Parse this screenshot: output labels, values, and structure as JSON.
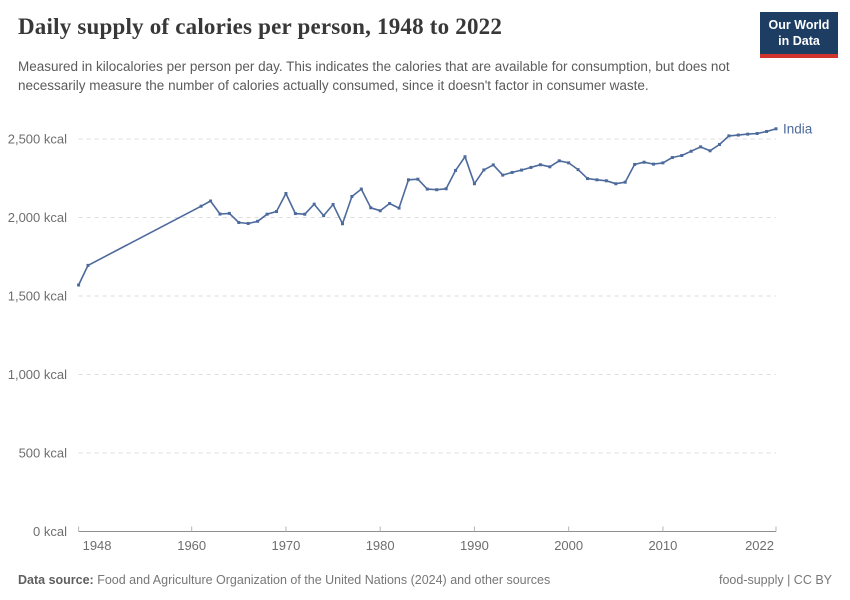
{
  "header": {
    "title": "Daily supply of calories per person, 1948 to 2022",
    "subtitle": "Measured in kilocalories per person per day. This indicates the calories that are available for consumption, but does not necessarily measure the number of calories actually consumed, since it doesn't factor in consumer waste.",
    "logo": {
      "line1": "Our World",
      "line2": "in Data",
      "bg_color": "#1d3d63",
      "accent_color": "#d0342c"
    }
  },
  "footer": {
    "datasource_label": "Data source:",
    "datasource_text": " Food and Agriculture Organization of the United Nations (2024) and other sources",
    "note_right": "food-supply | CC BY"
  },
  "chart_data": {
    "type": "line",
    "title": "Daily supply of calories per person, 1948 to 2022",
    "entity": "India",
    "line_color": "#4C6A9C",
    "grid": true,
    "legend_position": "end-of-line",
    "ylabel": "",
    "xlabel": "",
    "ytick_suffix": " kcal",
    "ylim": [
      0,
      2500
    ],
    "xlim": [
      1948,
      2022
    ],
    "yticks": [
      0,
      500,
      1000,
      1500,
      2000,
      2500
    ],
    "xticks": [
      1948,
      1960,
      1970,
      1980,
      1990,
      2000,
      2010,
      2022
    ],
    "x": [
      1948,
      1949,
      1961,
      1962,
      1963,
      1964,
      1965,
      1966,
      1967,
      1968,
      1969,
      1970,
      1971,
      1972,
      1973,
      1974,
      1975,
      1976,
      1977,
      1978,
      1979,
      1980,
      1981,
      1982,
      1983,
      1984,
      1985,
      1986,
      1987,
      1988,
      1989,
      1990,
      1991,
      1992,
      1993,
      1994,
      1995,
      1996,
      1997,
      1998,
      1999,
      2000,
      2001,
      2002,
      2003,
      2004,
      2005,
      2006,
      2007,
      2008,
      2009,
      2010,
      2011,
      2012,
      2013,
      2014,
      2015,
      2016,
      2017,
      2018,
      2019,
      2020,
      2021,
      2022
    ],
    "values": [
      1570,
      1695,
      2072,
      2105,
      2022,
      2026,
      1968,
      1962,
      1976,
      2021,
      2038,
      2153,
      2025,
      2021,
      2085,
      2012,
      2083,
      1960,
      2134,
      2181,
      2062,
      2043,
      2089,
      2060,
      2240,
      2244,
      2181,
      2177,
      2183,
      2300,
      2387,
      2215,
      2303,
      2335,
      2270,
      2287,
      2302,
      2319,
      2336,
      2323,
      2361,
      2348,
      2305,
      2248,
      2240,
      2234,
      2215,
      2225,
      2338,
      2352,
      2340,
      2348,
      2382,
      2395,
      2422,
      2450,
      2425,
      2465,
      2520,
      2525,
      2531,
      2535,
      2548,
      2565
    ]
  }
}
